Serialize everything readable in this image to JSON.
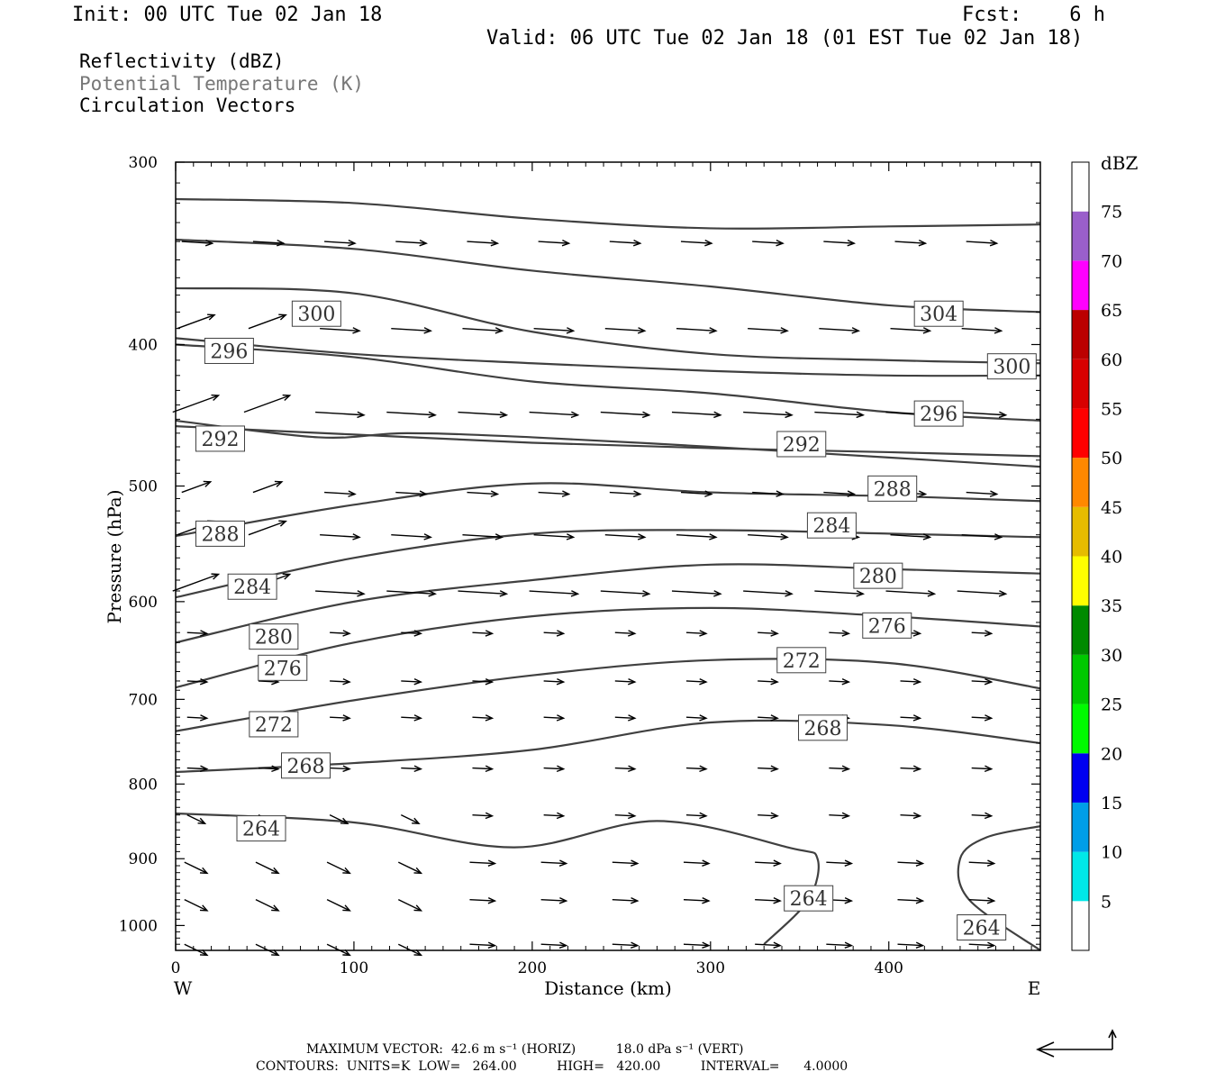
{
  "header": {
    "init": "Init: 00 UTC Tue 02 Jan 18",
    "fcst": "Fcst:    6 h",
    "valid": "Valid: 06 UTC Tue 02 Jan 18 (01 EST Tue 02 Jan 18)",
    "fields": [
      "Reflectivity (dBZ)",
      "Potential Temperature (K)",
      "Circulation Vectors"
    ]
  },
  "footer": {
    "line1": "MAXIMUM VECTOR:  42.6 m s⁻¹ (HORIZ)          18.0 dPa s⁻¹ (VERT)",
    "line2": "CONTOURS:  UNITS=K  LOW=   264.00          HIGH=   420.00          INTERVAL=      4.0000"
  },
  "chart_data": {
    "type": "contour",
    "xlabel": "Distance (km)",
    "ylabel": "Pressure (hPa)",
    "xlim": [
      0,
      485
    ],
    "ylim": [
      300,
      1040
    ],
    "y_scale": "log-pressure",
    "x_ticks": [
      0,
      100,
      200,
      300,
      400
    ],
    "y_ticks": [
      300,
      400,
      500,
      600,
      700,
      800,
      900,
      1000
    ],
    "x_end_labels": [
      "W",
      "E"
    ],
    "colorbar": {
      "label": "dBZ",
      "ticks": [
        5,
        10,
        15,
        20,
        25,
        30,
        35,
        40,
        45,
        50,
        55,
        60,
        65,
        70,
        75
      ],
      "colors": [
        "#00e8e8",
        "#009ee8",
        "#0000f0",
        "#00fa00",
        "#00c800",
        "#008a00",
        "#ffff00",
        "#e6bc00",
        "#ff8800",
        "#ff0000",
        "#d80000",
        "#bb0000",
        "#ff00ff",
        "#9a5fcb"
      ]
    },
    "contour_color": "#404040",
    "vector_color": "#000000",
    "contours": [
      {
        "level": 300,
        "label": "300",
        "label_at": [
          79,
          381
        ],
        "points": [
          [
            0,
            318
          ],
          [
            100,
            320
          ],
          [
            200,
            328
          ],
          [
            300,
            333
          ],
          [
            400,
            332
          ],
          [
            485,
            331
          ]
        ]
      },
      {
        "level": 304,
        "label": "304",
        "label_at": [
          428,
          381
        ],
        "points": [
          [
            0,
            339
          ],
          [
            100,
            344
          ],
          [
            200,
            356
          ],
          [
            300,
            365
          ],
          [
            400,
            376
          ],
          [
            485,
            380
          ]
        ]
      },
      {
        "level": 296,
        "label": "296",
        "label_at": [
          30,
          404
        ],
        "points": [
          [
            0,
            396
          ],
          [
            100,
            406
          ],
          [
            200,
            412
          ],
          [
            300,
            417
          ],
          [
            400,
            420
          ],
          [
            485,
            420
          ]
        ]
      },
      {
        "level": 300,
        "label": "300",
        "label_at": [
          469,
          414
        ],
        "points": [
          [
            0,
            366
          ],
          [
            100,
            369
          ],
          [
            200,
            392
          ],
          [
            300,
            406
          ],
          [
            400,
            410
          ],
          [
            485,
            412
          ]
        ]
      },
      {
        "level": 292,
        "label": "292",
        "label_at": [
          25,
          464
        ],
        "points": [
          [
            0,
            451
          ],
          [
            80,
            463
          ],
          [
            130,
            460
          ],
          [
            200,
            463
          ],
          [
            300,
            470
          ],
          [
            400,
            478
          ],
          [
            485,
            485
          ]
        ]
      },
      {
        "level": 296,
        "label": "296",
        "label_at": [
          428,
          446
        ],
        "points": [
          [
            0,
            400
          ],
          [
            100,
            408
          ],
          [
            200,
            424
          ],
          [
            300,
            432
          ],
          [
            400,
            445
          ],
          [
            485,
            451
          ]
        ]
      },
      {
        "level": 292,
        "label": "292",
        "label_at": [
          351,
          468
        ],
        "points": [
          [
            0,
            455
          ],
          [
            100,
            461
          ],
          [
            200,
            467
          ],
          [
            300,
            471
          ],
          [
            400,
            474
          ],
          [
            485,
            477
          ]
        ]
      },
      {
        "level": 288,
        "label": "288",
        "label_at": [
          25,
          539
        ],
        "points": [
          [
            0,
            541
          ],
          [
            100,
            515
          ],
          [
            200,
            498
          ],
          [
            300,
            505
          ],
          [
            400,
            508
          ],
          [
            485,
            512
          ]
        ]
      },
      {
        "level": 288,
        "label": "288",
        "label_at": [
          402,
          502
        ],
        "points": [
          [
            0,
            541
          ],
          [
            100,
            515
          ],
          [
            200,
            498
          ],
          [
            300,
            505
          ],
          [
            400,
            508
          ],
          [
            485,
            512
          ]
        ]
      },
      {
        "level": 284,
        "label": "284",
        "label_at": [
          43,
          586
        ],
        "points": [
          [
            0,
            596
          ],
          [
            100,
            560
          ],
          [
            200,
            539
          ],
          [
            300,
            536
          ],
          [
            400,
            539
          ],
          [
            485,
            542
          ]
        ]
      },
      {
        "level": 284,
        "label": "284",
        "label_at": [
          368,
          532
        ],
        "points": [
          [
            0,
            596
          ],
          [
            100,
            560
          ],
          [
            200,
            539
          ],
          [
            300,
            536
          ],
          [
            400,
            539
          ],
          [
            485,
            542
          ]
        ]
      },
      {
        "level": 280,
        "label": "280",
        "label_at": [
          55,
          634
        ],
        "points": [
          [
            0,
            640
          ],
          [
            100,
            600
          ],
          [
            200,
            580
          ],
          [
            300,
            566
          ],
          [
            400,
            570
          ],
          [
            485,
            574
          ]
        ]
      },
      {
        "level": 280,
        "label": "280",
        "label_at": [
          394,
          576
        ],
        "points": [
          [
            0,
            640
          ],
          [
            100,
            600
          ],
          [
            200,
            580
          ],
          [
            300,
            566
          ],
          [
            400,
            570
          ],
          [
            485,
            574
          ]
        ]
      },
      {
        "level": 276,
        "label": "276",
        "label_at": [
          60,
          666
        ],
        "points": [
          [
            0,
            687
          ],
          [
            100,
            640
          ],
          [
            200,
            614
          ],
          [
            300,
            606
          ],
          [
            400,
            614
          ],
          [
            485,
            624
          ]
        ]
      },
      {
        "level": 276,
        "label": "276",
        "label_at": [
          399,
          623
        ],
        "points": [
          [
            0,
            687
          ],
          [
            100,
            640
          ],
          [
            200,
            614
          ],
          [
            300,
            606
          ],
          [
            400,
            614
          ],
          [
            485,
            624
          ]
        ]
      },
      {
        "level": 272,
        "label": "272",
        "label_at": [
          55,
          728
        ],
        "points": [
          [
            0,
            736
          ],
          [
            100,
            701
          ],
          [
            200,
            674
          ],
          [
            300,
            658
          ],
          [
            400,
            661
          ],
          [
            485,
            688
          ]
        ]
      },
      {
        "level": 272,
        "label": "272",
        "label_at": [
          351,
          658
        ],
        "points": [
          [
            0,
            736
          ],
          [
            100,
            701
          ],
          [
            200,
            674
          ],
          [
            300,
            658
          ],
          [
            400,
            661
          ],
          [
            485,
            688
          ]
        ]
      },
      {
        "level": 268,
        "label": "268",
        "label_at": [
          73,
          777
        ],
        "points": [
          [
            0,
            785
          ],
          [
            100,
            774
          ],
          [
            200,
            758
          ],
          [
            300,
            726
          ],
          [
            400,
            729
          ],
          [
            485,
            750
          ]
        ]
      },
      {
        "level": 268,
        "label": "268",
        "label_at": [
          363,
          732
        ],
        "points": [
          [
            0,
            785
          ],
          [
            100,
            774
          ],
          [
            200,
            758
          ],
          [
            300,
            726
          ],
          [
            400,
            729
          ],
          [
            485,
            750
          ]
        ]
      },
      {
        "level": 264,
        "label": "264",
        "label_at": [
          48,
          858
        ],
        "points": [
          [
            0,
            838
          ],
          [
            100,
            850
          ],
          [
            190,
            884
          ],
          [
            270,
            848
          ],
          [
            345,
            885
          ],
          [
            360,
            900
          ],
          [
            355,
            960
          ],
          [
            330,
            1030
          ]
        ]
      },
      {
        "level": 264,
        "label": "264",
        "label_at": [
          355,
          958
        ],
        "points": [
          [
            0,
            838
          ],
          [
            100,
            850
          ],
          [
            190,
            884
          ],
          [
            270,
            848
          ],
          [
            345,
            885
          ],
          [
            360,
            900
          ],
          [
            355,
            960
          ],
          [
            330,
            1030
          ]
        ]
      },
      {
        "level": 264,
        "label": "264",
        "label_at": [
          452,
          1003
        ],
        "points": [
          [
            485,
            855
          ],
          [
            455,
            870
          ],
          [
            440,
            900
          ],
          [
            445,
            960
          ],
          [
            485,
            1040
          ]
        ]
      }
    ]
  }
}
